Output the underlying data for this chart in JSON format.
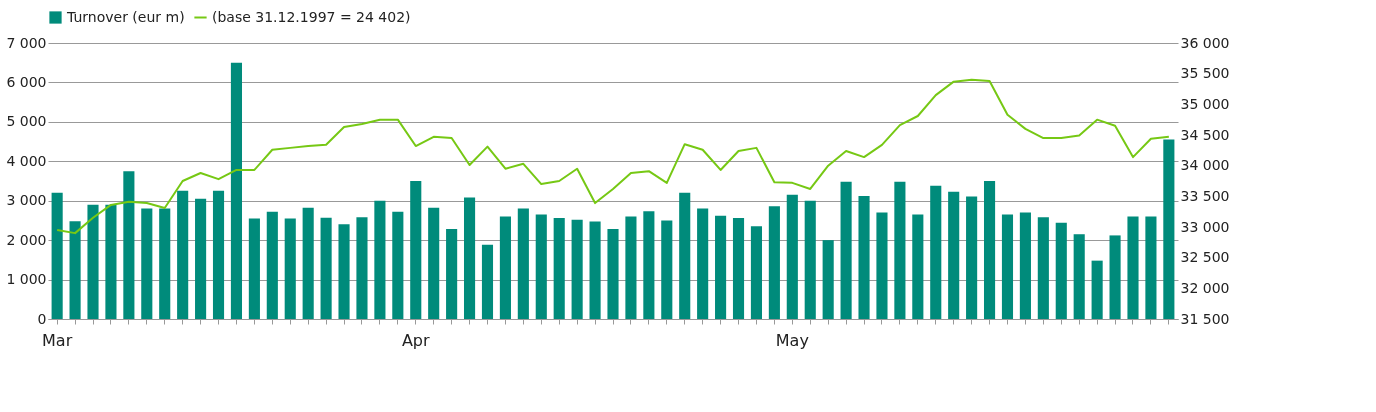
{
  "chart_data": {
    "type": "bar",
    "categories": [
      "Mar",
      null,
      null,
      null,
      null,
      null,
      null,
      null,
      null,
      null,
      null,
      null,
      null,
      null,
      null,
      null,
      null,
      null,
      null,
      null,
      "Apr",
      null,
      null,
      null,
      null,
      null,
      null,
      null,
      null,
      null,
      null,
      null,
      null,
      null,
      null,
      null,
      null,
      null,
      null,
      null,
      null,
      "May",
      null,
      null,
      null,
      null,
      null,
      null,
      null,
      null,
      null,
      null,
      null,
      null,
      null,
      null,
      null,
      null,
      null,
      null,
      null,
      null,
      null
    ],
    "series": [
      {
        "name": "Turnover (eur m)",
        "color": "#008b7b",
        "values": [
          3200,
          2480,
          2900,
          2900,
          3750,
          2800,
          2800,
          3250,
          3050,
          3250,
          6500,
          2550,
          2720,
          2550,
          2820,
          2570,
          2400,
          2580,
          3000,
          2720,
          3500,
          2820,
          2280,
          3080,
          1880,
          2600,
          2800,
          2650,
          2560,
          2520,
          2470,
          2280,
          2600,
          2730,
          2500,
          3200,
          2800,
          2620,
          2560,
          2350,
          2860,
          3150,
          3000,
          2000,
          3480,
          3120,
          2700,
          3480,
          2650,
          3380,
          3230,
          3110,
          3500,
          2650,
          2700,
          2580,
          2440,
          2150,
          1480,
          2120,
          2600,
          2600,
          4550
        ]
      },
      {
        "name": "(base 31.12.1997 = 24 402)",
        "type": "line",
        "axis": "y2",
        "color": "#76c814",
        "values": [
          32950,
          32900,
          33150,
          33360,
          33410,
          33390,
          33310,
          33750,
          33880,
          33780,
          33930,
          33930,
          34260,
          34290,
          34320,
          34340,
          34630,
          34680,
          34750,
          34750,
          34320,
          34470,
          34450,
          34010,
          34310,
          33950,
          34030,
          33700,
          33750,
          33950,
          33390,
          33620,
          33880,
          33910,
          33720,
          34350,
          34260,
          33930,
          34240,
          34290,
          33730,
          33720,
          33620,
          34000,
          34240,
          34140,
          34340,
          34660,
          34810,
          35150,
          35370,
          35400,
          35380,
          34830,
          34600,
          34450,
          34450,
          34490,
          34750,
          34650,
          34140,
          34440,
          34470
        ]
      }
    ],
    "ylim": [
      0,
      7000
    ],
    "yticks": [
      0,
      {
        "value": 1000,
        "label": "1 000"
      },
      {
        "value": 2000,
        "label": "2 000"
      },
      {
        "value": 3000,
        "label": "3 000"
      },
      {
        "value": 4000,
        "label": "4 000"
      },
      {
        "value": 5000,
        "label": "5 000"
      },
      {
        "value": 6000,
        "label": "6 000"
      },
      {
        "value": 7000,
        "label": "7 000"
      }
    ],
    "y2lim": [
      31500,
      36000
    ],
    "y2ticks": [
      {
        "value": 31500,
        "label": "31 500"
      },
      {
        "value": 32000,
        "label": "32 000"
      },
      {
        "value": 32500,
        "label": "32 500"
      },
      {
        "value": 33000,
        "label": "33 000"
      },
      {
        "value": 33500,
        "label": "33 500"
      },
      {
        "value": 34000,
        "label": "34 000"
      },
      {
        "value": 34500,
        "label": "34 500"
      },
      {
        "value": 35000,
        "label": "35 000"
      },
      {
        "value": 35500,
        "label": "35 500"
      },
      {
        "value": 36000,
        "label": "36 000"
      }
    ],
    "grid": "y",
    "legend": "top"
  }
}
